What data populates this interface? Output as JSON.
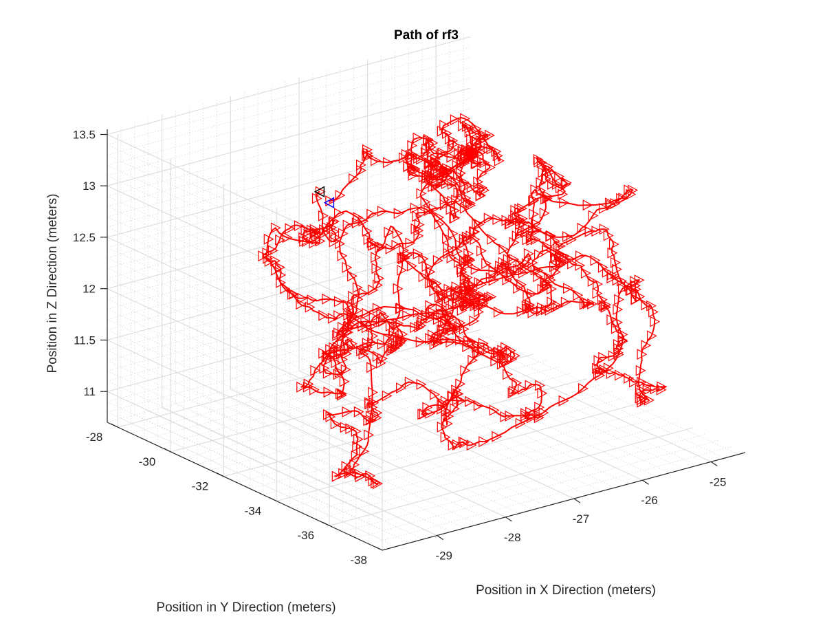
{
  "chart_data": {
    "type": "line",
    "projection": "3d",
    "title": "Path of rf3",
    "xlabel": "Position in X Direction (meters)",
    "ylabel": "Position in Y Direction (meters)",
    "zlabel": "Position in Z Direction (meters)",
    "xlim": [
      -29.8,
      -24.5
    ],
    "ylim": [
      -38,
      -27.6
    ],
    "zlim": [
      10.7,
      13.55
    ],
    "xticks": [
      -29,
      -28,
      -27,
      -26,
      -25
    ],
    "yticks": [
      -28,
      -30,
      -32,
      -34,
      -36,
      -38
    ],
    "zticks": [
      11,
      11.5,
      12,
      12.5,
      13,
      13.5
    ],
    "grid": true,
    "minor_grid": true,
    "marker": "triangle-right",
    "series_color": "#ff0000",
    "start_marker_color": "#000000",
    "end_marker_color": "#0000ff"
  }
}
